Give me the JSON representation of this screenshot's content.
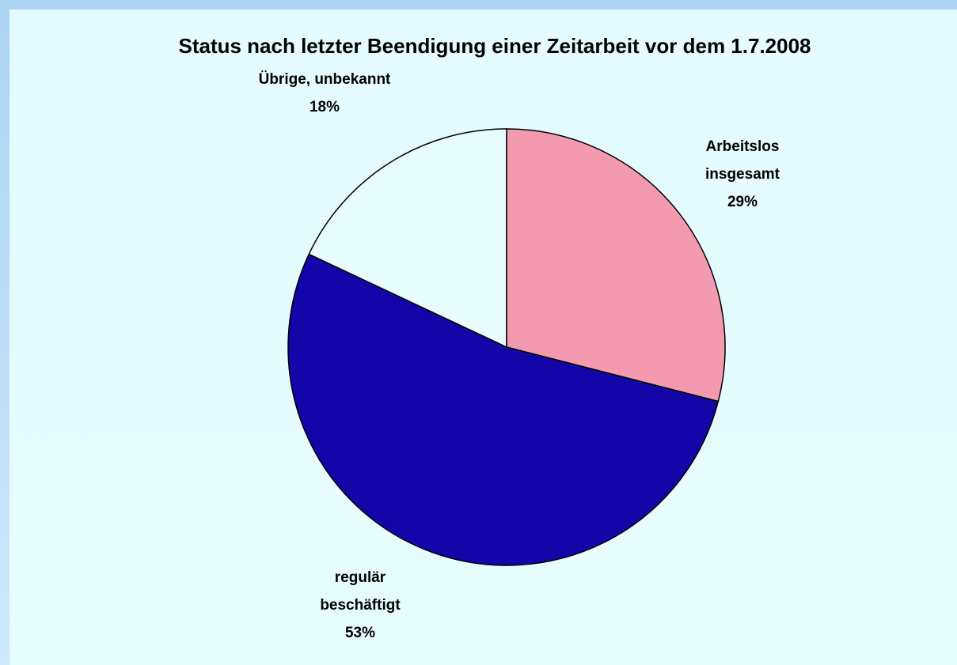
{
  "chart_data": {
    "type": "pie",
    "title": "Status nach letzter Beendigung einer Zeitarbeit vor dem 1.7.2008",
    "categories": [
      "Arbeitslos insgesamt",
      "regulär beschäftigt",
      "Übrige, unbekannt"
    ],
    "values": [
      29,
      53,
      18
    ],
    "value_labels": [
      "29%",
      "53%",
      "18%"
    ],
    "colors": [
      "#f49ab0",
      "#1405a8",
      "#e6fcff"
    ]
  }
}
